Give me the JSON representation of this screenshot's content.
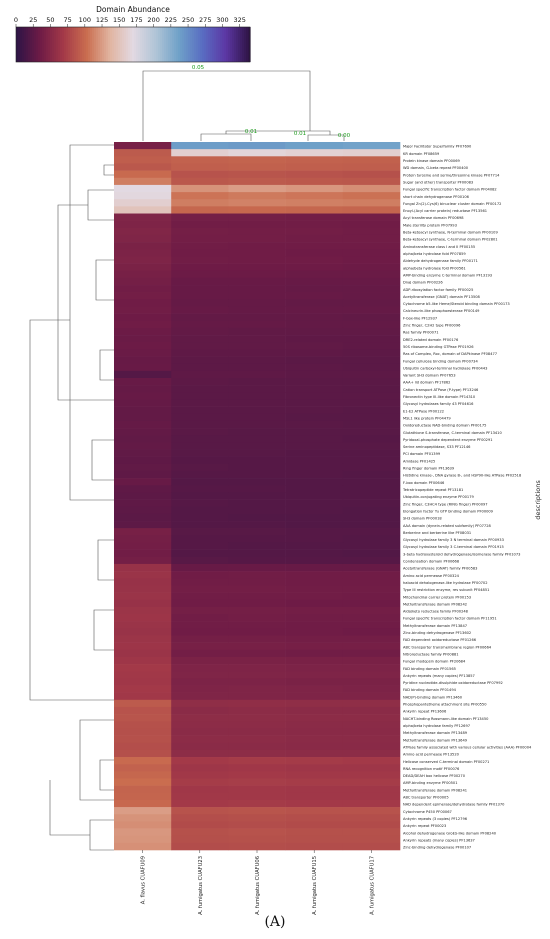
{
  "figure_label": "(A)",
  "chart_data": {
    "type": "heatmap",
    "colorbar": {
      "title": "Domain Abundance",
      "ticks": [
        "0",
        "25",
        "50",
        "75",
        "100",
        "125",
        "150",
        "175",
        "200",
        "225",
        "250",
        "275",
        "300",
        "325"
      ],
      "range": [
        0,
        340
      ],
      "colormap": "twilight_shifted"
    },
    "ylabel": "descriptions",
    "columns": [
      "A. flavus CUAFU09",
      "A. fumigatus CUAFU23",
      "A. fumigatus CUAFU06",
      "A. fumigatus CUAFU15",
      "A. fumigatus CUAFU17"
    ],
    "dendrogram_labels": [
      "0.05",
      "0.01",
      "0.01",
      "0.00"
    ],
    "rows": [
      {
        "label": "Major Facilitator Superfamily PF07690",
        "values": [
          40,
          240,
          242,
          238,
          236
        ]
      },
      {
        "label": "KR domain PF08659",
        "values": [
          90,
          160,
          165,
          162,
          160
        ]
      },
      {
        "label": "Protein kinase domain PF00069",
        "values": [
          92,
          95,
          96,
          95,
          94
        ]
      },
      {
        "label": "WD domain, G-beta repeat PF00400",
        "values": [
          88,
          93,
          94,
          93,
          92
        ]
      },
      {
        "label": "Protein tyrosine and serine/threonine kinase PF07714",
        "values": [
          100,
          85,
          86,
          85,
          84
        ]
      },
      {
        "label": "Sugar (and other) transporter PF00083",
        "values": [
          110,
          88,
          90,
          89,
          88
        ]
      },
      {
        "label": "Fungal specific transcription factor domain PF04082",
        "values": [
          170,
          120,
          125,
          122,
          118
        ]
      },
      {
        "label": "short chain dehydrogenase PF00106",
        "values": [
          168,
          105,
          108,
          106,
          104
        ]
      },
      {
        "label": "Fungal Zn(2)-Cys(6) binuclear cluster domain PF00172",
        "values": [
          160,
          110,
          112,
          111,
          110
        ]
      },
      {
        "label": "Enoyl-(Acyl carrier protein) reductase PF13561",
        "values": [
          150,
          98,
          99,
          98,
          97
        ]
      },
      {
        "label": "Acyl transferase domain PF00698",
        "values": [
          45,
          38,
          38,
          37,
          37
        ]
      },
      {
        "label": "Male sterility protein PF07993",
        "values": [
          44,
          36,
          36,
          36,
          35
        ]
      },
      {
        "label": "Beta-ketoacyl synthase, N-terminal domain PF00109",
        "values": [
          46,
          38,
          37,
          37,
          36
        ]
      },
      {
        "label": "Beta-ketoacyl synthase, C-terminal domain PF02801",
        "values": [
          45,
          37,
          37,
          36,
          36
        ]
      },
      {
        "label": "Aminotransferase class I and II PF00155",
        "values": [
          42,
          36,
          35,
          35,
          35
        ]
      },
      {
        "label": "alpha/beta hydrolase fold PF07859",
        "values": [
          43,
          35,
          35,
          34,
          34
        ]
      },
      {
        "label": "Aldehyde dehydrogenase family PF00171",
        "values": [
          44,
          36,
          35,
          35,
          34
        ]
      },
      {
        "label": "alpha/beta hydrolase fold PF00561",
        "values": [
          42,
          34,
          34,
          34,
          33
        ]
      },
      {
        "label": "AMP-binding enzyme C-terminal domain PF13193",
        "values": [
          40,
          33,
          33,
          32,
          32
        ]
      },
      {
        "label": "DnaJ domain PF00226",
        "values": [
          38,
          31,
          31,
          30,
          30
        ]
      },
      {
        "label": "ADP-ribosylation factor family PF00025",
        "values": [
          36,
          30,
          30,
          29,
          29
        ]
      },
      {
        "label": "Acetyltransferase (GNAT) domain PF13508",
        "values": [
          37,
          30,
          30,
          30,
          29
        ]
      },
      {
        "label": "Cytochrome b5-like Heme/Steroid binding domain PF00173",
        "values": [
          35,
          29,
          29,
          28,
          28
        ]
      },
      {
        "label": "Calcineurin-like phosphoesterase PF00149",
        "values": [
          36,
          30,
          29,
          29,
          29
        ]
      },
      {
        "label": "F-box-like PF12937",
        "values": [
          34,
          28,
          28,
          28,
          27
        ]
      },
      {
        "label": "Zinc finger, C2H2 type PF00096",
        "values": [
          35,
          29,
          29,
          28,
          28
        ]
      },
      {
        "label": "Ras family PF00071",
        "values": [
          33,
          28,
          27,
          27,
          27
        ]
      },
      {
        "label": "DRE2-related domain PF00176",
        "values": [
          32,
          27,
          27,
          26,
          26
        ]
      },
      {
        "label": "50S ribosome-binding GTPase PF01926",
        "values": [
          33,
          27,
          27,
          27,
          26
        ]
      },
      {
        "label": "Ras of Complex, Roc, domain of DAPkinase PF08477",
        "values": [
          32,
          26,
          26,
          26,
          25
        ]
      },
      {
        "label": "Fungal cellulose binding domain PF00734",
        "values": [
          30,
          25,
          25,
          24,
          24
        ]
      },
      {
        "label": "Ubiquitin carboxyl-terminal hydrolase PF00443",
        "values": [
          31,
          25,
          25,
          25,
          24
        ]
      },
      {
        "label": "Variant SH3 domain PF07653",
        "values": [
          20,
          26,
          26,
          25,
          25
        ]
      },
      {
        "label": "AAA+ lid domain PF17862",
        "values": [
          30,
          25,
          24,
          24,
          24
        ]
      },
      {
        "label": "Cation transport ATPase (P-type) PF13246",
        "values": [
          29,
          24,
          24,
          24,
          23
        ]
      },
      {
        "label": "Fibronectin type III-like domain PF14310",
        "values": [
          30,
          24,
          24,
          24,
          24
        ]
      },
      {
        "label": "Glycosyl hydrolases family 43 PF04616",
        "values": [
          29,
          24,
          24,
          23,
          23
        ]
      },
      {
        "label": "E1-E2 ATPase PF00122",
        "values": [
          28,
          23,
          23,
          23,
          22
        ]
      },
      {
        "label": "MSL1 like protein PF04479",
        "values": [
          28,
          23,
          23,
          22,
          22
        ]
      },
      {
        "label": "Oxidoreductase NAD-binding domain PF00175",
        "values": [
          29,
          23,
          23,
          23,
          22
        ]
      },
      {
        "label": "Glutathione S-transferase, C-terminal domain PF13410",
        "values": [
          28,
          23,
          22,
          22,
          22
        ]
      },
      {
        "label": "Pyridoxal-phosphate dependent enzyme PF00291",
        "values": [
          27,
          22,
          22,
          22,
          21
        ]
      },
      {
        "label": "Serine aminopeptidase, S33 PF12146",
        "values": [
          28,
          22,
          22,
          22,
          22
        ]
      },
      {
        "label": "PCI domain PF01399",
        "values": [
          27,
          22,
          22,
          21,
          21
        ]
      },
      {
        "label": "Amidase PF01425",
        "values": [
          26,
          21,
          21,
          21,
          21
        ]
      },
      {
        "label": "Ring finger domain PF13639",
        "values": [
          27,
          22,
          21,
          21,
          21
        ]
      },
      {
        "label": "Histidine kinase-, DNA gyrase B-, and HSP90-like ATPase PF02518",
        "values": [
          26,
          21,
          21,
          21,
          20
        ]
      },
      {
        "label": "F-box domain PF00646",
        "values": [
          30,
          20,
          20,
          20,
          20
        ]
      },
      {
        "label": "Tetratricopeptide repeat PF13181",
        "values": [
          26,
          21,
          21,
          20,
          20
        ]
      },
      {
        "label": "Ubiquitin-conjugating enzyme PF00179",
        "values": [
          25,
          20,
          20,
          20,
          20
        ]
      },
      {
        "label": "Zinc finger, C3HC4 type (RING finger) PF00097",
        "values": [
          26,
          21,
          20,
          20,
          20
        ]
      },
      {
        "label": "Elongation factor Tu GTP binding domain PF00009",
        "values": [
          25,
          20,
          20,
          20,
          19
        ]
      },
      {
        "label": "SH3 domain PF00018",
        "values": [
          24,
          20,
          19,
          19,
          19
        ]
      },
      {
        "label": "AAA domain (dynein-related subfamily) PF07728",
        "values": [
          25,
          20,
          20,
          19,
          19
        ]
      },
      {
        "label": "Berberine and berberine like PF08031",
        "values": [
          40,
          22,
          22,
          21,
          21
        ]
      },
      {
        "label": "Glycosyl hydrolase family 3 N terminal domain PF00933",
        "values": [
          38,
          21,
          21,
          21,
          20
        ]
      },
      {
        "label": "Glycosyl hydrolase family 3 C-terminal domain PF01915",
        "values": [
          37,
          21,
          20,
          20,
          20
        ]
      },
      {
        "label": "3-beta hydroxysteroid dehydrogenase/isomerase family PF01073",
        "values": [
          36,
          20,
          20,
          20,
          19
        ]
      },
      {
        "label": "Condensation domain PF00668",
        "values": [
          38,
          22,
          21,
          21,
          21
        ]
      },
      {
        "label": "Acetyltransferase (GNAT) family PF00583",
        "values": [
          60,
          30,
          31,
          30,
          30
        ]
      },
      {
        "label": "Amino acid permease PF00324",
        "values": [
          62,
          35,
          36,
          35,
          35
        ]
      },
      {
        "label": "haloacid dehalogenase-like hydrolase PF00702",
        "values": [
          60,
          36,
          36,
          35,
          35
        ]
      },
      {
        "label": "Type III restriction enzyme, res subunit PF04851",
        "values": [
          61,
          37,
          37,
          36,
          36
        ]
      },
      {
        "label": "Mitochondrial carrier protein PF00153",
        "values": [
          62,
          36,
          36,
          36,
          35
        ]
      },
      {
        "label": "Methyltransferase domain PF08242",
        "values": [
          60,
          35,
          35,
          34,
          34
        ]
      },
      {
        "label": "Aldo/keto reductase family PF00248",
        "values": [
          63,
          38,
          38,
          37,
          37
        ]
      },
      {
        "label": "Fungal specific transcription factor domain PF11951",
        "values": [
          64,
          36,
          37,
          36,
          36
        ]
      },
      {
        "label": "Methyltransferase domain PF13847",
        "values": [
          62,
          36,
          36,
          35,
          35
        ]
      },
      {
        "label": "Zinc-binding dehydrogenase PF13602",
        "values": [
          61,
          35,
          35,
          35,
          34
        ]
      },
      {
        "label": "FAD dependent oxidoreductase PF01266",
        "values": [
          63,
          38,
          38,
          37,
          37
        ]
      },
      {
        "label": "ABC transporter transmembrane region PF00664",
        "values": [
          64,
          40,
          40,
          39,
          39
        ]
      },
      {
        "label": "Nitroreductase family PF00881",
        "values": [
          62,
          37,
          37,
          36,
          36
        ]
      },
      {
        "label": "Fungal rhodopsin domain PF20684",
        "values": [
          65,
          42,
          42,
          41,
          41
        ]
      },
      {
        "label": "FAD binding domain PF01565",
        "values": [
          68,
          44,
          44,
          43,
          43
        ]
      },
      {
        "label": "Ankyrin repeats (many copies) PF13857",
        "values": [
          67,
          45,
          45,
          44,
          44
        ]
      },
      {
        "label": "Pyridine nucleotide-disulphide oxidoreductase PF07992",
        "values": [
          66,
          43,
          43,
          42,
          42
        ]
      },
      {
        "label": "FAD binding domain PF01494",
        "values": [
          68,
          44,
          45,
          44,
          43
        ]
      },
      {
        "label": "NAD(P)-binding domain PF13460",
        "values": [
          67,
          45,
          45,
          44,
          44
        ]
      },
      {
        "label": "Phosphopantetheine attachment site PF00550",
        "values": [
          90,
          55,
          56,
          55,
          55
        ]
      },
      {
        "label": "Ankyrin repeat PF13606",
        "values": [
          85,
          52,
          53,
          52,
          52
        ]
      },
      {
        "label": "NACHT-binding Rossmann-like domain PF13450",
        "values": [
          86,
          54,
          54,
          53,
          53
        ]
      },
      {
        "label": "alpha/beta hydrolase family PF12697",
        "values": [
          84,
          53,
          53,
          52,
          52
        ]
      },
      {
        "label": "Methyltransferase domain PF13489",
        "values": [
          83,
          52,
          52,
          51,
          51
        ]
      },
      {
        "label": "Methyltransferase domain PF13649",
        "values": [
          84,
          53,
          53,
          52,
          52
        ]
      },
      {
        "label": "ATPase family associated with various cellular activities (AAA) PF00004",
        "values": [
          82,
          52,
          52,
          51,
          51
        ]
      },
      {
        "label": "Amino acid permease PF13520",
        "values": [
          83,
          54,
          54,
          53,
          53
        ]
      },
      {
        "label": "Helicase conserved C-terminal domain PF00271",
        "values": [
          100,
          68,
          70,
          69,
          68
        ]
      },
      {
        "label": "RNA recognition motif PF00076",
        "values": [
          95,
          65,
          66,
          65,
          65
        ]
      },
      {
        "label": "DEAD/DEAH box helicase PF00270",
        "values": [
          98,
          67,
          68,
          67,
          67
        ]
      },
      {
        "label": "AMP-binding enzyme PF00501",
        "values": [
          102,
          70,
          71,
          70,
          70
        ]
      },
      {
        "label": "Methyltransferase domain PF08241",
        "values": [
          96,
          66,
          67,
          66,
          66
        ]
      },
      {
        "label": "ABC transporter PF00005",
        "values": [
          97,
          67,
          67,
          66,
          66
        ]
      },
      {
        "label": "NAD dependent epimerase/dehydratase family PF01370",
        "values": [
          99,
          68,
          69,
          68,
          68
        ]
      },
      {
        "label": "Cytochrome P450 PF00067",
        "values": [
          125,
          85,
          86,
          85,
          85
        ]
      },
      {
        "label": "Ankyrin repeats (3 copies) PF12796",
        "values": [
          120,
          82,
          83,
          82,
          82
        ]
      },
      {
        "label": "Ankyrin repeat PF00023",
        "values": [
          118,
          80,
          81,
          80,
          80
        ]
      },
      {
        "label": "Alcohol dehydrogenase GroES-like domain PF08240",
        "values": [
          122,
          84,
          85,
          84,
          84
        ]
      },
      {
        "label": "Ankyrin repeats (many copies) PF13637",
        "values": [
          121,
          83,
          84,
          83,
          83
        ]
      },
      {
        "label": "Zinc-binding dehydrogenase PF00107",
        "values": [
          119,
          81,
          82,
          81,
          81
        ]
      }
    ]
  }
}
